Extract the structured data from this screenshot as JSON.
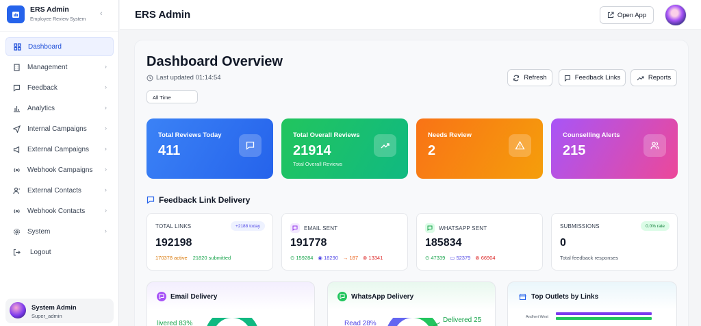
{
  "sidebar": {
    "brand_title": "ERS Admin",
    "brand_subtitle": "Employee Review System",
    "items": [
      {
        "label": "Dashboard",
        "icon": "grid-icon",
        "active": true
      },
      {
        "label": "Management",
        "icon": "building-icon"
      },
      {
        "label": "Feedback",
        "icon": "message-icon"
      },
      {
        "label": "Analytics",
        "icon": "bar-chart-icon"
      },
      {
        "label": "Internal Campaigns",
        "icon": "send-icon"
      },
      {
        "label": "External Campaigns",
        "icon": "megaphone-icon"
      },
      {
        "label": "Webhook Campaigns",
        "icon": "broadcast-icon"
      },
      {
        "label": "External Contacts",
        "icon": "user-contact-icon"
      },
      {
        "label": "Webhook Contacts",
        "icon": "broadcast-icon"
      },
      {
        "label": "System",
        "icon": "gear-icon"
      }
    ],
    "logout_label": "Logout",
    "user": {
      "name": "System Admin",
      "role": "Super_admin"
    }
  },
  "topbar": {
    "title": "ERS Admin",
    "open_app_label": "Open App"
  },
  "dashboard": {
    "title": "Dashboard Overview",
    "last_updated": "Last updated 01:14:54",
    "range_value": "All Time",
    "actions": {
      "refresh": "Refresh",
      "feedback_links": "Feedback Links",
      "reports": "Reports"
    }
  },
  "stats": [
    {
      "label": "Total Reviews Today",
      "value": "411",
      "sub": "",
      "color_from": "#3b82f6",
      "color_to": "#2563eb",
      "icon": "message-icon"
    },
    {
      "label": "Total Overall Reviews",
      "value": "21914",
      "sub": "Total Overall Reviews",
      "color_from": "#22c55e",
      "color_to": "#10b981",
      "icon": "trending-up-icon"
    },
    {
      "label": "Needs Review",
      "value": "2",
      "sub": "",
      "color_from": "#f97316",
      "color_to": "#f59e0b",
      "icon": "warning-icon"
    },
    {
      "label": "Counselling Alerts",
      "value": "215",
      "sub": "",
      "color_from": "#a855f7",
      "color_to": "#ec4899",
      "icon": "users-icon"
    }
  ],
  "delivery": {
    "section_title": "Feedback Link Delivery",
    "total_links": {
      "label": "TOTAL LINKS",
      "value": "192198",
      "pill": "+2188 today",
      "active": "170378 active",
      "submitted": "21820 submitted"
    },
    "email_sent": {
      "label": "EMAIL SENT",
      "value": "191778",
      "delivered": "159284",
      "read": "18290",
      "pending": "187",
      "failed": "13341"
    },
    "whatsapp_sent": {
      "label": "WHATSAPP SENT",
      "value": "185834",
      "delivered": "47339",
      "read": "52379",
      "failed": "66904"
    },
    "submissions": {
      "label": "SUBMISSIONS",
      "value": "0",
      "pill": "0.0% rate",
      "sub": "Total feedback responses"
    }
  },
  "bottom": {
    "email_delivery": {
      "title": "Email Delivery",
      "legend": "livered 83%"
    },
    "whatsapp_delivery": {
      "title": "WhatsApp Delivery",
      "legend_read": "Read 28%",
      "legend_delivered": "Delivered 25"
    },
    "top_outlets": {
      "title": "Top Outlets by Links",
      "first_outlet": "Andheri West"
    }
  },
  "colors": {
    "accent": "#2563eb",
    "active_bg": "#eef2ff"
  }
}
